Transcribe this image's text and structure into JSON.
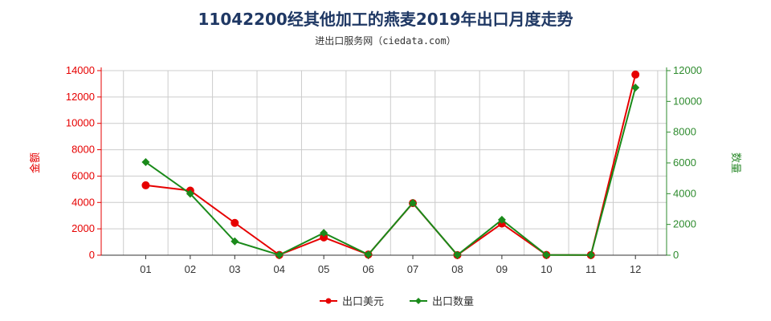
{
  "chart_data": {
    "type": "line",
    "title": "11042200经其他加工的燕麦2019年出口月度走势",
    "subtitle": "进出口服务网（ciedata.com）",
    "categories": [
      "01",
      "02",
      "03",
      "04",
      "05",
      "06",
      "07",
      "08",
      "09",
      "10",
      "11",
      "12"
    ],
    "y_left": {
      "label": "金额",
      "range": [
        0,
        14000
      ],
      "ticks": [
        0,
        2000,
        4000,
        6000,
        8000,
        10000,
        12000,
        14000
      ],
      "color": "#e60000"
    },
    "y_right": {
      "label": "数量",
      "range": [
        0,
        12000
      ],
      "ticks": [
        0,
        2000,
        4000,
        6000,
        8000,
        10000,
        12000
      ],
      "color": "#2e8b2e"
    },
    "series": [
      {
        "name": "出口美元",
        "axis": "left",
        "color": "#e60000",
        "values": [
          5300,
          4900,
          2450,
          20,
          1350,
          50,
          3950,
          10,
          2400,
          20,
          10,
          13700
        ]
      },
      {
        "name": "出口数量",
        "axis": "right",
        "color": "#1a8a1a",
        "values": [
          6050,
          4000,
          900,
          15,
          1450,
          40,
          3400,
          10,
          2300,
          15,
          10,
          10900
        ]
      }
    ],
    "grid": true,
    "legend_position": "bottom-center"
  }
}
